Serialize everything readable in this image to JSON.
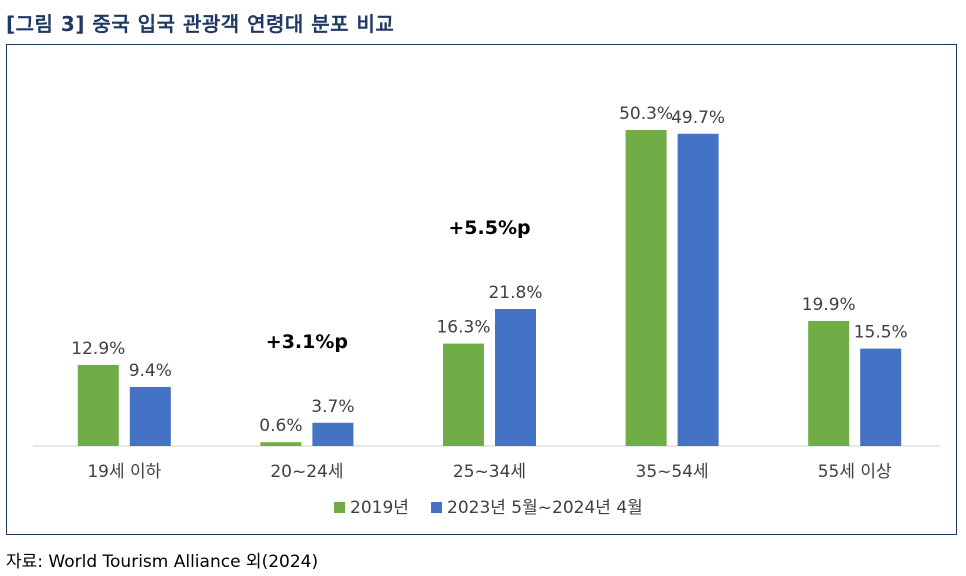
{
  "figure": {
    "title": "[그림 3] 중국 입국 관광객 연령대 분포 비교",
    "source": "자료: World Tourism Alliance 외(2024)"
  },
  "chart_data": {
    "type": "bar",
    "categories": [
      "19세 이하",
      "20~24세",
      "25~34세",
      "35~54세",
      "55세 이상"
    ],
    "series": [
      {
        "name": "2019년",
        "color": "#70ad47",
        "values": [
          12.9,
          0.6,
          16.3,
          50.3,
          19.9
        ],
        "labels": [
          "12.9%",
          "0.6%",
          "16.3%",
          "50.3%",
          "19.9%"
        ]
      },
      {
        "name": "2023년 5월~2024년 4월",
        "color": "#4472c4",
        "values": [
          9.4,
          3.7,
          21.8,
          49.7,
          15.5
        ],
        "labels": [
          "9.4%",
          "3.7%",
          "21.8%",
          "49.7%",
          "15.5%"
        ]
      }
    ],
    "annotations": [
      {
        "category": "20~24세",
        "text": "+3.1%p"
      },
      {
        "category": "25~34세",
        "text": "+5.5%p"
      }
    ],
    "ylim": [
      0,
      50.3
    ],
    "legend": "bottom-center",
    "grid": false
  }
}
